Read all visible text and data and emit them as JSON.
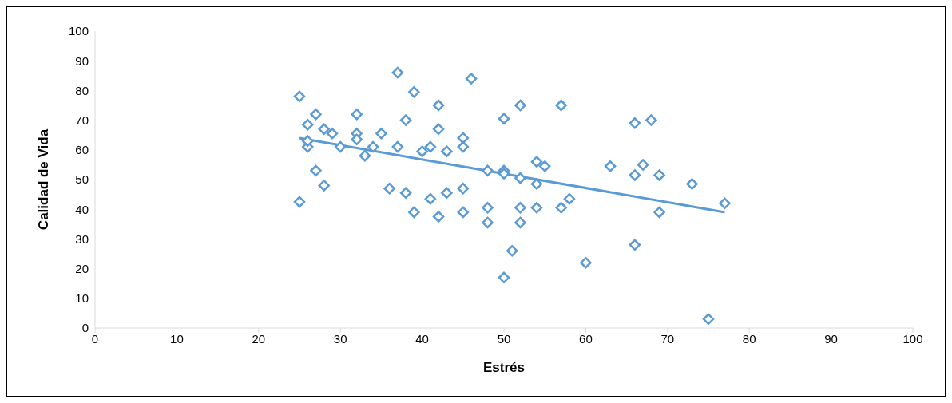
{
  "chart_data": {
    "type": "scatter",
    "xlabel": "Estrés",
    "ylabel": "Calidad de Vida",
    "xlim": [
      0,
      100
    ],
    "ylim": [
      0,
      100
    ],
    "xticks": [
      0,
      10,
      20,
      30,
      40,
      50,
      60,
      70,
      80,
      90,
      100
    ],
    "yticks": [
      0,
      10,
      20,
      30,
      40,
      50,
      60,
      70,
      80,
      90,
      100
    ],
    "grid": false,
    "legend": false,
    "marker": "diamond",
    "series": [
      {
        "color": "#5b9bd5",
        "x": [
          25,
          25,
          26,
          26,
          26,
          27,
          27,
          28,
          28,
          29,
          30,
          32,
          32,
          32,
          33,
          34,
          35,
          36,
          37,
          37,
          38,
          38,
          39,
          39,
          40,
          41,
          41,
          42,
          42,
          42,
          43,
          43,
          45,
          45,
          45,
          45,
          46,
          48,
          48,
          48,
          50,
          50,
          50,
          50,
          51,
          52,
          52,
          52,
          52,
          54,
          54,
          54,
          55,
          57,
          57,
          58,
          60,
          63,
          66,
          66,
          66,
          67,
          68,
          69,
          69,
          73,
          75,
          77
        ],
        "values": [
          78,
          42.5,
          68.5,
          61,
          63,
          72,
          53,
          67,
          48,
          65.5,
          61,
          72,
          65.5,
          63.5,
          58,
          61,
          65.5,
          47,
          86,
          61,
          70,
          45.5,
          79.5,
          39,
          59.5,
          61,
          43.5,
          75,
          67,
          37.5,
          59.5,
          45.5,
          64,
          61,
          47,
          39,
          84,
          53,
          40.5,
          35.5,
          70.5,
          53,
          52,
          17,
          26,
          75,
          50.5,
          40.5,
          35.5,
          56,
          48.5,
          40.5,
          54.5,
          75,
          40.5,
          43.5,
          22,
          54.5,
          69,
          51.5,
          28,
          55,
          70,
          51.5,
          39,
          48.5,
          3,
          42
        ]
      },
      {
        "type": "line",
        "color": "#5b9bd5",
        "x": [
          25,
          77
        ],
        "values": [
          64,
          39
        ],
        "marker": "none"
      }
    ]
  }
}
